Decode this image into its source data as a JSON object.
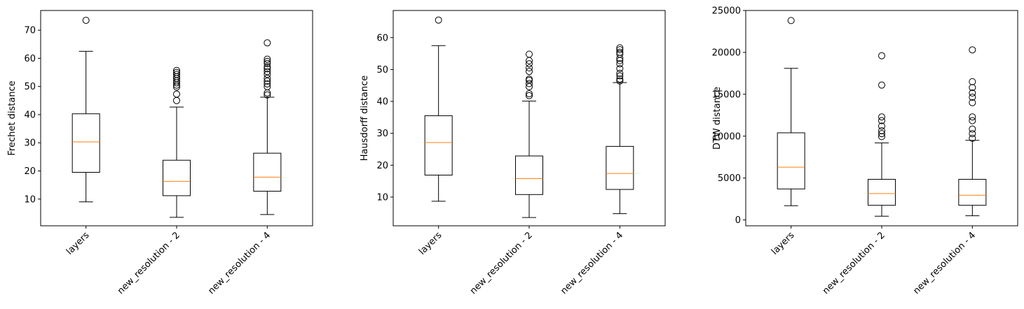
{
  "chart_data": [
    {
      "type": "box",
      "ylabel": "Frechet distance",
      "xlabel": "",
      "ylim": [
        0.5,
        77
      ],
      "yticks": [
        10,
        20,
        30,
        40,
        50,
        60,
        70
      ],
      "categories": [
        "layers",
        "new_resolution - 2",
        "new_resolution - 4"
      ],
      "boxes": [
        {
          "whisker_low": 9.0,
          "q1": 19.5,
          "median": 30.3,
          "q3": 40.3,
          "whisker_high": 62.5,
          "outliers": [
            73.5
          ]
        },
        {
          "whisker_low": 3.5,
          "q1": 11.2,
          "median": 16.3,
          "q3": 23.8,
          "whisker_high": 42.7,
          "outliers": [
            45.0,
            47.3,
            49.8,
            50.5,
            51.3,
            52.0,
            52.8,
            53.5,
            54.3,
            55.0,
            55.7
          ]
        },
        {
          "whisker_low": 4.5,
          "q1": 12.8,
          "median": 17.8,
          "q3": 26.3,
          "whisker_high": 46.2,
          "outliers": [
            47.0,
            47.7,
            49.9,
            50.9,
            51.9,
            52.9,
            54.3,
            55.3,
            56.3,
            57.0,
            58.2,
            58.9,
            59.7,
            65.5
          ]
        }
      ]
    },
    {
      "type": "box",
      "ylabel": "Hausdorff distance",
      "xlabel": "",
      "ylim": [
        1,
        68.5
      ],
      "yticks": [
        10,
        20,
        30,
        40,
        50,
        60
      ],
      "categories": [
        "layers",
        "new_resolution - 2",
        "new_resolution - 4"
      ],
      "boxes": [
        {
          "whisker_low": 8.7,
          "q1": 16.9,
          "median": 27.1,
          "q3": 35.5,
          "whisker_high": 57.5,
          "outliers": [
            65.5
          ]
        },
        {
          "whisker_low": 3.6,
          "q1": 10.8,
          "median": 15.8,
          "q3": 22.9,
          "whisker_high": 40.1,
          "outliers": [
            41.8,
            42.4,
            44.6,
            45.6,
            46.6,
            47.0,
            49.4,
            50.5,
            51.8,
            52.8,
            54.8
          ]
        },
        {
          "whisker_low": 4.8,
          "q1": 12.4,
          "median": 17.4,
          "q3": 25.9,
          "whisker_high": 45.9,
          "outliers": [
            46.4,
            47.0,
            48.0,
            48.8,
            50.3,
            51.8,
            52.8,
            53.5,
            54.8,
            55.4,
            56.2,
            56.8
          ]
        }
      ]
    },
    {
      "type": "box",
      "ylabel": "DTW distance",
      "xlabel": "",
      "ylim": [
        -700,
        25000
      ],
      "yticks": [
        0,
        5000,
        10000,
        15000,
        20000,
        25000
      ],
      "categories": [
        "layers",
        "new_resolution - 2",
        "new_resolution - 4"
      ],
      "boxes": [
        {
          "whisker_low": 1700,
          "q1": 3700,
          "median": 6300,
          "q3": 10400,
          "whisker_high": 18100,
          "outliers": [
            23800
          ]
        },
        {
          "whisker_low": 450,
          "q1": 1750,
          "median": 3150,
          "q3": 4850,
          "whisker_high": 9200,
          "outliers": [
            9950,
            10300,
            10650,
            11200,
            11850,
            12300,
            16100,
            19600
          ]
        },
        {
          "whisker_low": 500,
          "q1": 1750,
          "median": 2950,
          "q3": 4850,
          "whisker_high": 9500,
          "outliers": [
            9750,
            10300,
            10850,
            11850,
            12300,
            14000,
            14650,
            15150,
            15800,
            16500,
            20300
          ]
        }
      ]
    }
  ]
}
